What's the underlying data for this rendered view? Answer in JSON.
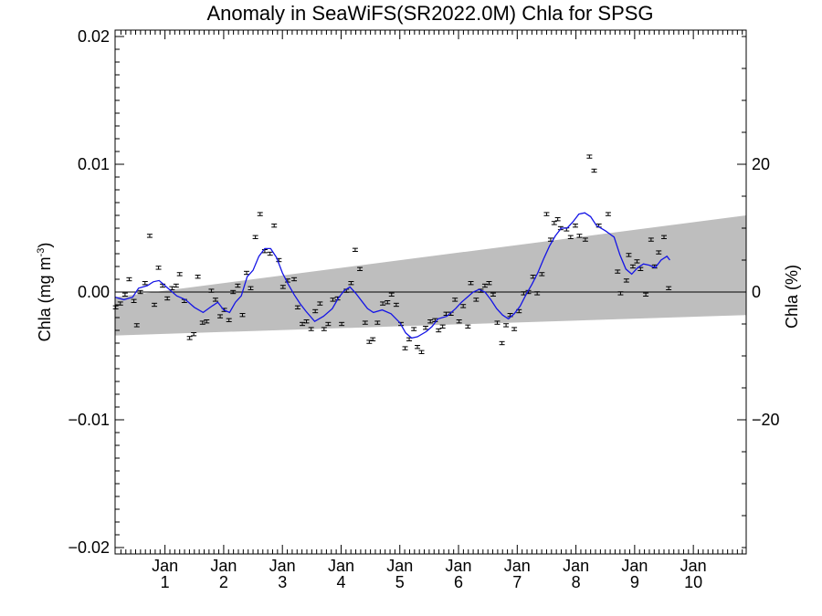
{
  "chart_data": {
    "type": "scatter",
    "title": "Anomaly in SeaWiFS(SR2022.0M) Chla for SPSG",
    "ylabel": "Chla (mg m",
    "ylabel_sup": "-3",
    "ylabel_close": ")",
    "y2label": "Chla (%)",
    "xlabel": "",
    "xlim": [
      0.15,
      10.9
    ],
    "ylim": [
      -0.0205,
      0.0205
    ],
    "y2lim": [
      -41,
      41
    ],
    "y_ticks": [
      {
        "v": -0.02,
        "label": "−0.02"
      },
      {
        "v": -0.01,
        "label": "−0.01"
      },
      {
        "v": 0.0,
        "label": "0.00"
      },
      {
        "v": 0.01,
        "label": "0.01"
      },
      {
        "v": 0.02,
        "label": "0.02"
      }
    ],
    "y2_ticks": [
      {
        "v": -20,
        "label": "−20"
      },
      {
        "v": 0,
        "label": "0"
      },
      {
        "v": 20,
        "label": "20"
      }
    ],
    "x_ticks": [
      {
        "v": 1,
        "month": "Jan",
        "year": "1"
      },
      {
        "v": 2,
        "month": "Jan",
        "year": "2"
      },
      {
        "v": 3,
        "month": "Jan",
        "year": "3"
      },
      {
        "v": 4,
        "month": "Jan",
        "year": "4"
      },
      {
        "v": 5,
        "month": "Jan",
        "year": "5"
      },
      {
        "v": 6,
        "month": "Jan",
        "year": "6"
      },
      {
        "v": 7,
        "month": "Jan",
        "year": "7"
      },
      {
        "v": 8,
        "month": "Jan",
        "year": "8"
      },
      {
        "v": 9,
        "month": "Jan",
        "year": "9"
      },
      {
        "v": 10,
        "month": "Jan",
        "year": "10"
      }
    ],
    "uncertainty_band": {
      "lower": [
        [
          0.15,
          -0.0034
        ],
        [
          10.9,
          -0.0018
        ]
      ],
      "upper": [
        [
          0.15,
          -0.0004
        ],
        [
          10.9,
          0.006
        ]
      ],
      "color": "#bebebe"
    },
    "zero_line": 0.0,
    "points": [
      [
        0.16,
        -0.0012
      ],
      [
        0.24,
        -0.0009
      ],
      [
        0.32,
        -0.0002
      ],
      [
        0.39,
        0.001
      ],
      [
        0.47,
        -0.0007
      ],
      [
        0.52,
        -0.0026
      ],
      [
        0.58,
        0.0
      ],
      [
        0.66,
        0.0007
      ],
      [
        0.74,
        0.0044
      ],
      [
        0.82,
        -0.001
      ],
      [
        0.89,
        0.0019
      ],
      [
        0.96,
        0.0005
      ],
      [
        1.04,
        -0.0005
      ],
      [
        1.12,
        0.0003
      ],
      [
        1.19,
        0.0005
      ],
      [
        1.25,
        0.0014
      ],
      [
        1.33,
        -0.0007
      ],
      [
        1.42,
        -0.0036
      ],
      [
        1.49,
        -0.0033
      ],
      [
        1.56,
        0.0012
      ],
      [
        1.64,
        -0.0024
      ],
      [
        1.71,
        -0.0023
      ],
      [
        1.79,
        0.0001
      ],
      [
        1.86,
        -0.0006
      ],
      [
        1.94,
        -0.0019
      ],
      [
        2.01,
        -0.0014
      ],
      [
        2.09,
        -0.0022
      ],
      [
        2.16,
        0.0
      ],
      [
        2.24,
        0.0005
      ],
      [
        2.32,
        -0.0018
      ],
      [
        2.39,
        0.0015
      ],
      [
        2.46,
        0.0003
      ],
      [
        2.54,
        0.0043
      ],
      [
        2.62,
        0.0061
      ],
      [
        2.7,
        0.0032
      ],
      [
        2.79,
        0.003
      ],
      [
        2.86,
        0.0052
      ],
      [
        2.94,
        0.0025
      ],
      [
        3.01,
        0.0004
      ],
      [
        3.09,
        0.0009
      ],
      [
        3.2,
        0.001
      ],
      [
        3.26,
        -0.0012
      ],
      [
        3.34,
        -0.0025
      ],
      [
        3.41,
        -0.0023
      ],
      [
        3.49,
        -0.0029
      ],
      [
        3.56,
        -0.0015
      ],
      [
        3.64,
        -0.0009
      ],
      [
        3.71,
        -0.0029
      ],
      [
        3.78,
        -0.0025
      ],
      [
        3.86,
        -0.0006
      ],
      [
        3.94,
        -0.0005
      ],
      [
        4.01,
        -0.0025
      ],
      [
        4.09,
        0.0001
      ],
      [
        4.17,
        0.0007
      ],
      [
        4.24,
        0.0033
      ],
      [
        4.32,
        0.0018
      ],
      [
        4.41,
        -0.0024
      ],
      [
        4.48,
        -0.0039
      ],
      [
        4.54,
        -0.0037
      ],
      [
        4.62,
        -0.0024
      ],
      [
        4.71,
        -0.0009
      ],
      [
        4.79,
        -0.0008
      ],
      [
        4.86,
        -0.0002
      ],
      [
        4.94,
        -0.001
      ],
      [
        5.02,
        -0.0025
      ],
      [
        5.09,
        -0.0044
      ],
      [
        5.16,
        -0.0037
      ],
      [
        5.24,
        -0.0029
      ],
      [
        5.3,
        -0.0043
      ],
      [
        5.37,
        -0.0047
      ],
      [
        5.44,
        -0.0028
      ],
      [
        5.52,
        -0.0023
      ],
      [
        5.6,
        -0.0022
      ],
      [
        5.66,
        -0.003
      ],
      [
        5.73,
        -0.0027
      ],
      [
        5.79,
        -0.0017
      ],
      [
        5.87,
        -0.0017
      ],
      [
        5.94,
        -0.0006
      ],
      [
        6.01,
        -0.0023
      ],
      [
        6.08,
        -0.0011
      ],
      [
        6.16,
        -0.0027
      ],
      [
        6.21,
        0.0007
      ],
      [
        6.3,
        -0.0006
      ],
      [
        6.38,
        0.0001
      ],
      [
        6.45,
        0.0005
      ],
      [
        6.52,
        0.0007
      ],
      [
        6.59,
        -0.0002
      ],
      [
        6.66,
        -0.0024
      ],
      [
        6.74,
        -0.004
      ],
      [
        6.81,
        -0.0026
      ],
      [
        6.88,
        -0.0018
      ],
      [
        6.95,
        -0.0029
      ],
      [
        7.03,
        -0.0015
      ],
      [
        7.11,
        -0.0001
      ],
      [
        7.19,
        0.0
      ],
      [
        7.27,
        0.0012
      ],
      [
        7.34,
        -0.0001
      ],
      [
        7.42,
        0.0014
      ],
      [
        7.5,
        0.0061
      ],
      [
        7.57,
        0.0041
      ],
      [
        7.63,
        0.0054
      ],
      [
        7.69,
        0.0057
      ],
      [
        7.74,
        0.005
      ],
      [
        7.84,
        0.0049
      ],
      [
        7.91,
        0.0043
      ],
      [
        7.99,
        0.0052
      ],
      [
        8.06,
        0.0044
      ],
      [
        8.16,
        0.0041
      ],
      [
        8.23,
        0.0106
      ],
      [
        8.31,
        0.0095
      ],
      [
        8.39,
        0.0052
      ],
      [
        8.55,
        0.0061
      ],
      [
        8.71,
        0.0016
      ],
      [
        8.76,
        -0.0001
      ],
      [
        8.86,
        0.0009
      ],
      [
        8.9,
        0.0029
      ],
      [
        8.97,
        0.002
      ],
      [
        9.04,
        0.0024
      ],
      [
        9.1,
        0.0018
      ],
      [
        9.19,
        -0.0002
      ],
      [
        9.28,
        0.0041
      ],
      [
        9.34,
        0.002
      ],
      [
        9.41,
        0.0031
      ],
      [
        9.5,
        0.0043
      ],
      [
        9.58,
        0.0003
      ]
    ],
    "smoothed_line": {
      "color": "#1414e6",
      "points": [
        [
          0.15,
          -0.0004
        ],
        [
          0.3,
          -0.0006
        ],
        [
          0.45,
          -0.0004
        ],
        [
          0.55,
          0.0003
        ],
        [
          0.7,
          0.0005
        ],
        [
          0.8,
          0.0008
        ],
        [
          0.9,
          0.0009
        ],
        [
          1.0,
          0.0005
        ],
        [
          1.1,
          0.0001
        ],
        [
          1.2,
          -0.0003
        ],
        [
          1.35,
          -0.0006
        ],
        [
          1.5,
          -0.0012
        ],
        [
          1.65,
          -0.0016
        ],
        [
          1.8,
          -0.0011
        ],
        [
          1.9,
          -0.0008
        ],
        [
          2.0,
          -0.0014
        ],
        [
          2.1,
          -0.0016
        ],
        [
          2.2,
          -0.0008
        ],
        [
          2.3,
          -0.0003
        ],
        [
          2.4,
          0.0012
        ],
        [
          2.5,
          0.0017
        ],
        [
          2.6,
          0.0028
        ],
        [
          2.7,
          0.0034
        ],
        [
          2.8,
          0.0034
        ],
        [
          2.9,
          0.0027
        ],
        [
          3.0,
          0.0015
        ],
        [
          3.1,
          0.0006
        ],
        [
          3.2,
          -0.0002
        ],
        [
          3.3,
          -0.0009
        ],
        [
          3.4,
          -0.0015
        ],
        [
          3.55,
          -0.0023
        ],
        [
          3.7,
          -0.0019
        ],
        [
          3.85,
          -0.0013
        ],
        [
          3.95,
          -0.0005
        ],
        [
          4.05,
          0.0001
        ],
        [
          4.15,
          0.0004
        ],
        [
          4.25,
          -0.0001
        ],
        [
          4.35,
          -0.0007
        ],
        [
          4.45,
          -0.0013
        ],
        [
          4.55,
          -0.0016
        ],
        [
          4.7,
          -0.0014
        ],
        [
          4.85,
          -0.0017
        ],
        [
          5.0,
          -0.0024
        ],
        [
          5.1,
          -0.0032
        ],
        [
          5.2,
          -0.0036
        ],
        [
          5.3,
          -0.0035
        ],
        [
          5.45,
          -0.0031
        ],
        [
          5.55,
          -0.0027
        ],
        [
          5.65,
          -0.0021
        ],
        [
          5.8,
          -0.0019
        ],
        [
          5.95,
          -0.0013
        ],
        [
          6.05,
          -0.0008
        ],
        [
          6.15,
          -0.0004
        ],
        [
          6.25,
          0.0
        ],
        [
          6.35,
          0.0002
        ],
        [
          6.45,
          0.0
        ],
        [
          6.55,
          -0.0006
        ],
        [
          6.65,
          -0.0013
        ],
        [
          6.75,
          -0.0018
        ],
        [
          6.85,
          -0.0021
        ],
        [
          6.95,
          -0.0017
        ],
        [
          7.05,
          -0.0011
        ],
        [
          7.15,
          -0.0002
        ],
        [
          7.25,
          0.0006
        ],
        [
          7.35,
          0.0015
        ],
        [
          7.45,
          0.0026
        ],
        [
          7.55,
          0.0036
        ],
        [
          7.65,
          0.0044
        ],
        [
          7.75,
          0.005
        ],
        [
          7.85,
          0.005
        ],
        [
          7.95,
          0.0055
        ],
        [
          8.05,
          0.0061
        ],
        [
          8.15,
          0.0062
        ],
        [
          8.25,
          0.0059
        ],
        [
          8.35,
          0.0052
        ],
        [
          8.5,
          0.0048
        ],
        [
          8.65,
          0.0043
        ],
        [
          8.75,
          0.0029
        ],
        [
          8.85,
          0.0018
        ],
        [
          8.95,
          0.0014
        ],
        [
          9.05,
          0.0019
        ],
        [
          9.15,
          0.0022
        ],
        [
          9.25,
          0.0021
        ],
        [
          9.35,
          0.0019
        ],
        [
          9.45,
          0.0025
        ],
        [
          9.55,
          0.0028
        ],
        [
          9.6,
          0.0025
        ]
      ]
    },
    "errorbar_half": 0.00012,
    "grid": false,
    "legend": "none"
  }
}
